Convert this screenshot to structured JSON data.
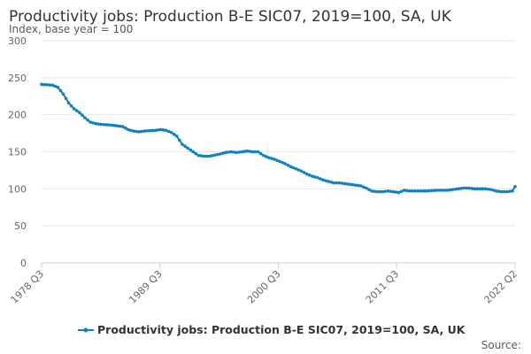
{
  "chart_data": {
    "type": "line",
    "title": "Productivity jobs: Production B-E SIC07, 2019=100, SA, UK",
    "ylabel": "Index, base year = 100",
    "xlabel": "",
    "ylim": [
      0,
      300
    ],
    "y_ticks": [
      0,
      50,
      100,
      150,
      200,
      250,
      300
    ],
    "x_tick_labels": [
      "1978 Q3",
      "1989 Q3",
      "2000 Q3",
      "2011 Q3",
      "2022 Q2"
    ],
    "x_range": [
      1978.5,
      2022.25
    ],
    "grid": true,
    "legend_position": "bottom",
    "source": "Source:",
    "series": [
      {
        "name": "Productivity jobs: Production B-E SIC07, 2019=100, SA, UK",
        "color": "#0f80c0",
        "points": [
          [
            1978.5,
            241
          ],
          [
            1979.5,
            240
          ],
          [
            1980.0,
            237
          ],
          [
            1980.5,
            228
          ],
          [
            1981.0,
            216
          ],
          [
            1981.5,
            208
          ],
          [
            1982.0,
            203
          ],
          [
            1982.5,
            196
          ],
          [
            1983.0,
            190
          ],
          [
            1983.5,
            188
          ],
          [
            1984.0,
            187
          ],
          [
            1985.0,
            186
          ],
          [
            1986.0,
            184
          ],
          [
            1986.5,
            180
          ],
          [
            1987.0,
            178
          ],
          [
            1987.5,
            177
          ],
          [
            1988.0,
            178
          ],
          [
            1989.0,
            179
          ],
          [
            1989.5,
            180
          ],
          [
            1990.0,
            179
          ],
          [
            1990.5,
            176
          ],
          [
            1991.0,
            171
          ],
          [
            1991.5,
            160
          ],
          [
            1992.0,
            155
          ],
          [
            1992.5,
            150
          ],
          [
            1993.0,
            145
          ],
          [
            1993.5,
            144
          ],
          [
            1994.0,
            144
          ],
          [
            1995.0,
            147
          ],
          [
            1995.5,
            149
          ],
          [
            1996.0,
            150
          ],
          [
            1996.5,
            149
          ],
          [
            1997.0,
            150
          ],
          [
            1997.5,
            151
          ],
          [
            1998.0,
            150
          ],
          [
            1998.5,
            150
          ],
          [
            1999.0,
            145
          ],
          [
            1999.5,
            142
          ],
          [
            2000.0,
            140
          ],
          [
            2000.5,
            137
          ],
          [
            2001.0,
            134
          ],
          [
            2001.5,
            130
          ],
          [
            2002.0,
            127
          ],
          [
            2002.5,
            124
          ],
          [
            2003.0,
            120
          ],
          [
            2003.5,
            117
          ],
          [
            2004.0,
            115
          ],
          [
            2004.5,
            112
          ],
          [
            2005.0,
            110
          ],
          [
            2005.5,
            108
          ],
          [
            2006.0,
            108
          ],
          [
            2006.5,
            107
          ],
          [
            2007.0,
            106
          ],
          [
            2007.5,
            105
          ],
          [
            2008.0,
            104
          ],
          [
            2008.5,
            101
          ],
          [
            2009.0,
            97
          ],
          [
            2009.5,
            96
          ],
          [
            2010.0,
            96
          ],
          [
            2010.5,
            97
          ],
          [
            2011.0,
            96
          ],
          [
            2011.5,
            95
          ],
          [
            2012.0,
            98
          ],
          [
            2012.5,
            97
          ],
          [
            2013.0,
            97
          ],
          [
            2014.0,
            97
          ],
          [
            2015.0,
            98
          ],
          [
            2016.0,
            98
          ],
          [
            2016.5,
            99
          ],
          [
            2017.0,
            100
          ],
          [
            2017.5,
            101
          ],
          [
            2018.0,
            101
          ],
          [
            2018.5,
            100
          ],
          [
            2019.0,
            100
          ],
          [
            2019.5,
            100
          ],
          [
            2020.0,
            99
          ],
          [
            2020.5,
            97
          ],
          [
            2021.0,
            96
          ],
          [
            2021.5,
            96
          ],
          [
            2022.0,
            97
          ],
          [
            2022.25,
            103
          ]
        ]
      }
    ]
  }
}
